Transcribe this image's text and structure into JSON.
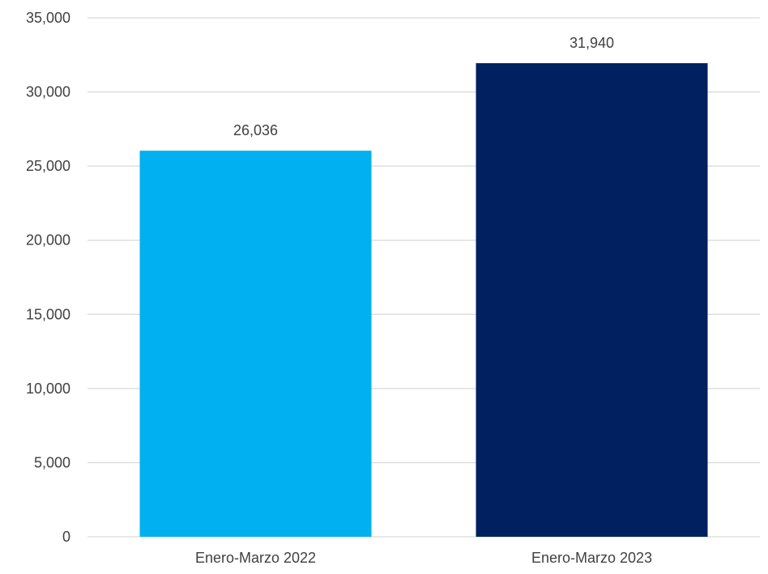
{
  "chart_data": {
    "type": "bar",
    "categories": [
      "Enero-Marzo 2022",
      "Enero-Marzo 2023"
    ],
    "values": [
      26036,
      31940
    ],
    "value_labels": [
      "26,036",
      "31,940"
    ],
    "bar_colors": [
      "#00b0f0",
      "#002060"
    ],
    "ylim": [
      0,
      35000
    ],
    "yticks": [
      0,
      5000,
      10000,
      15000,
      20000,
      25000,
      30000,
      35000
    ],
    "ytick_labels": [
      "0",
      "5,000",
      "10,000",
      "15,000",
      "20,000",
      "25,000",
      "30,000",
      "35,000"
    ],
    "grid": true,
    "grid_color": "#d9d9d9",
    "title": "",
    "xlabel": "",
    "ylabel": ""
  }
}
